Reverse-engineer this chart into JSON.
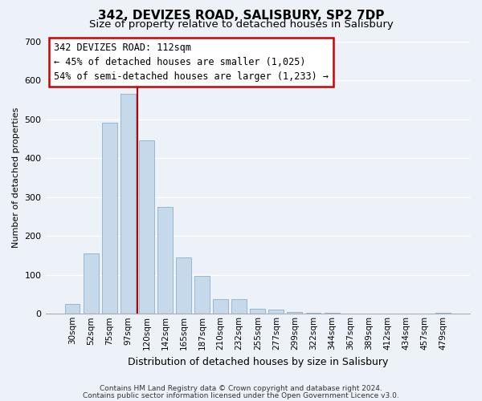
{
  "title": "342, DEVIZES ROAD, SALISBURY, SP2 7DP",
  "subtitle": "Size of property relative to detached houses in Salisbury",
  "xlabel": "Distribution of detached houses by size in Salisbury",
  "ylabel": "Number of detached properties",
  "bar_labels": [
    "30sqm",
    "52sqm",
    "75sqm",
    "97sqm",
    "120sqm",
    "142sqm",
    "165sqm",
    "187sqm",
    "210sqm",
    "232sqm",
    "255sqm",
    "277sqm",
    "299sqm",
    "322sqm",
    "344sqm",
    "367sqm",
    "389sqm",
    "412sqm",
    "434sqm",
    "457sqm",
    "479sqm"
  ],
  "bar_values": [
    25,
    155,
    490,
    565,
    445,
    275,
    145,
    98,
    37,
    37,
    13,
    10,
    5,
    3,
    2,
    1,
    0,
    0,
    0,
    0,
    3
  ],
  "bar_color": "#c5d9ea",
  "bar_edge_color": "#8ab0cc",
  "highlight_bar_index": 3,
  "highlight_line_color": "#bb0000",
  "ylim": [
    0,
    700
  ],
  "yticks": [
    0,
    100,
    200,
    300,
    400,
    500,
    600,
    700
  ],
  "annotation_title": "342 DEVIZES ROAD: 112sqm",
  "annotation_line1": "← 45% of detached houses are smaller (1,025)",
  "annotation_line2": "54% of semi-detached houses are larger (1,233) →",
  "annotation_box_color": "#ffffff",
  "annotation_box_edge": "#cc0000",
  "footnote1": "Contains HM Land Registry data © Crown copyright and database right 2024.",
  "footnote2": "Contains public sector information licensed under the Open Government Licence v3.0.",
  "bg_color": "#edf2f9",
  "grid_color": "#ffffff",
  "title_fontsize": 11,
  "subtitle_fontsize": 9.5,
  "ylabel_fontsize": 8,
  "xlabel_fontsize": 9,
  "tick_fontsize": 8,
  "xtick_fontsize": 7.5,
  "footnote_fontsize": 6.5
}
